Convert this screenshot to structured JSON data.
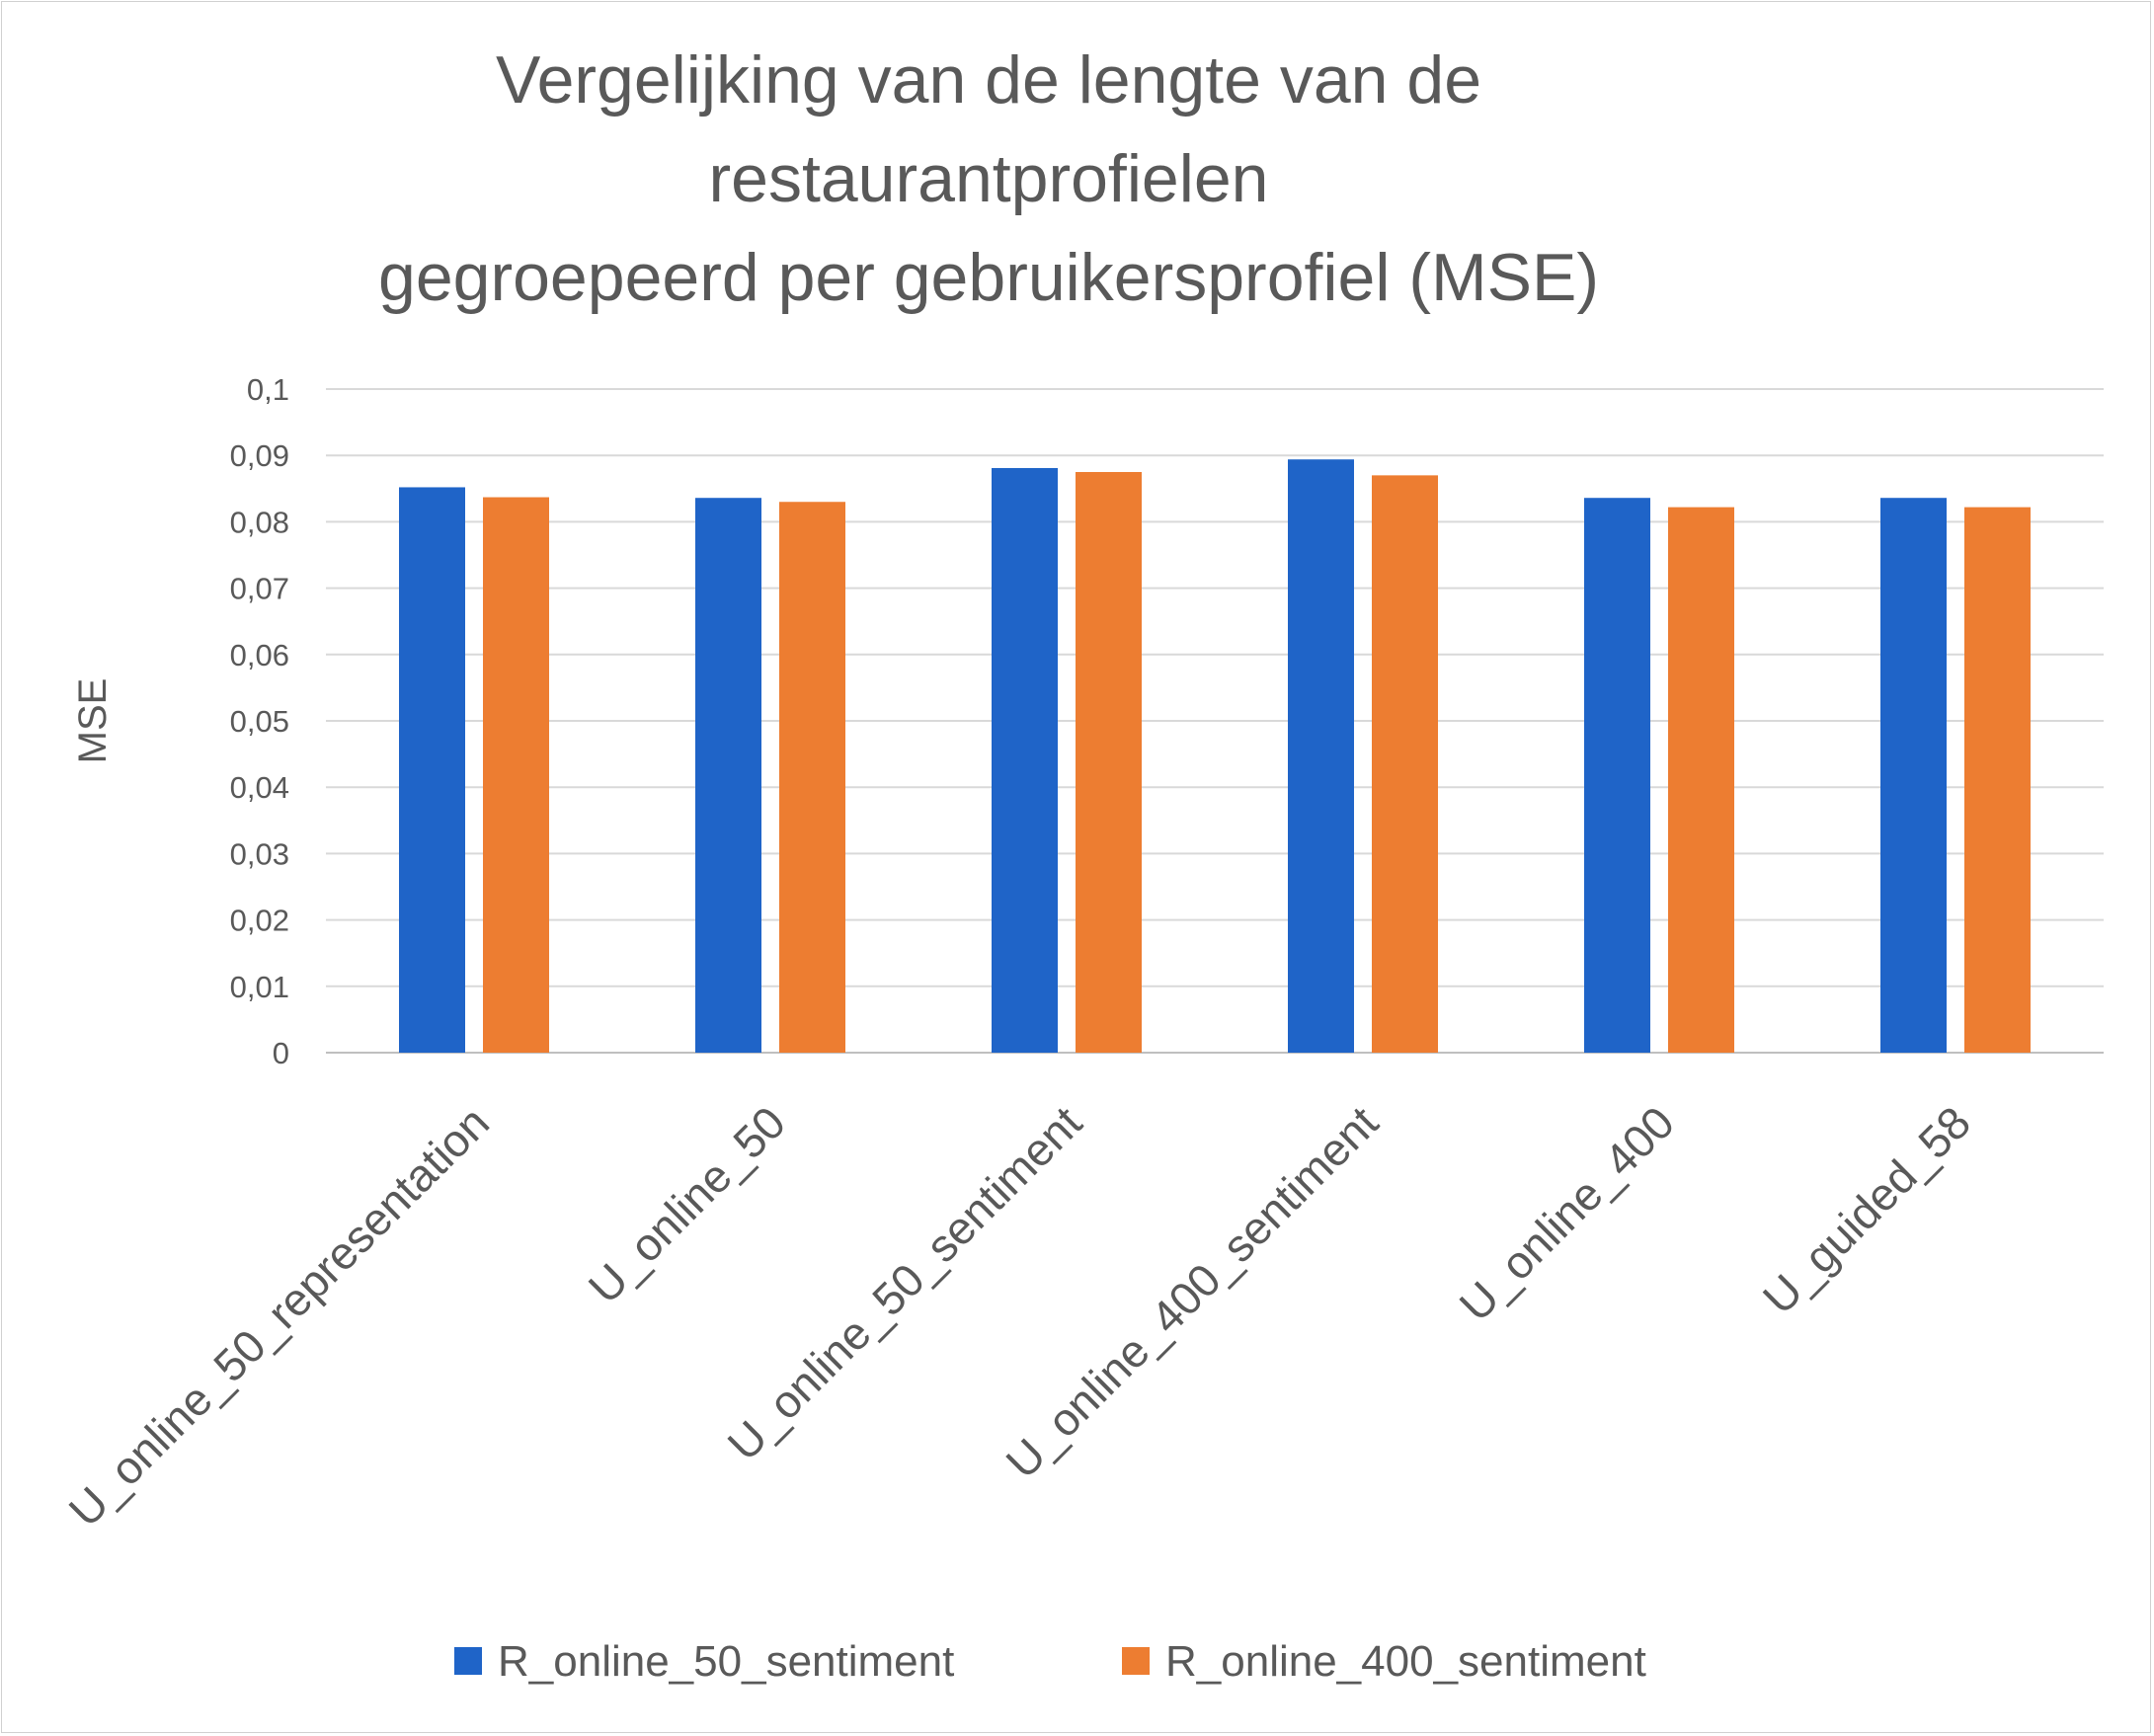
{
  "chart_data": {
    "type": "bar",
    "title_lines": [
      "Vergelijking van de lengte van de",
      "restaurantprofielen",
      "gegroepeerd per gebruikersprofiel (MSE)"
    ],
    "ylabel": "MSE",
    "ylim": [
      0,
      0.1
    ],
    "y_ticks": [
      "0",
      "0,01",
      "0,02",
      "0,03",
      "0,04",
      "0,05",
      "0,06",
      "0,07",
      "0,08",
      "0,09",
      "0,1"
    ],
    "grid": true,
    "legend_position": "bottom",
    "categories": [
      "U_online_50_representation",
      "U_online_50",
      "U_online_50_sentiment",
      "U_online_400_sentiment",
      "U_online_400",
      "U_guided_58"
    ],
    "series": [
      {
        "name": "R_online_50_sentiment",
        "color": "#1F64C8",
        "values": [
          0.0852,
          0.0836,
          0.0881,
          0.0894,
          0.0836,
          0.0836
        ]
      },
      {
        "name": "R_online_400_sentiment",
        "color": "#ED7D31",
        "values": [
          0.0837,
          0.083,
          0.0875,
          0.087,
          0.0822,
          0.0822
        ]
      }
    ]
  }
}
